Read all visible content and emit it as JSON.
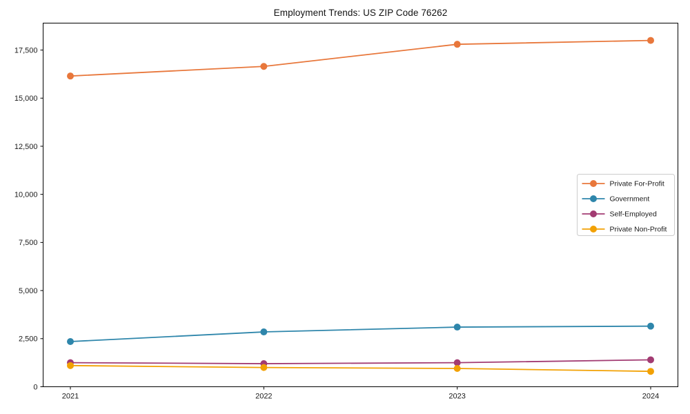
{
  "chart_data": {
    "type": "line",
    "title": "Employment Trends: US ZIP Code 76262",
    "categories": [
      "2021",
      "2022",
      "2023",
      "2024"
    ],
    "series": [
      {
        "name": "Private For-Profit",
        "color": "#E8773B",
        "values": [
          16150,
          16650,
          17800,
          18000
        ]
      },
      {
        "name": "Government",
        "color": "#2E86AB",
        "values": [
          2350,
          2850,
          3100,
          3150
        ]
      },
      {
        "name": "Self-Employed",
        "color": "#A23B72",
        "values": [
          1250,
          1200,
          1250,
          1400
        ]
      },
      {
        "name": "Private Non-Profit",
        "color": "#F2A104",
        "values": [
          1100,
          1000,
          950,
          800
        ]
      }
    ],
    "xlabel": "",
    "ylabel": "",
    "ylim": [
      0,
      18900
    ],
    "yticks": [
      0,
      2500,
      5000,
      7500,
      10000,
      12500,
      15000,
      17500
    ],
    "grid": false,
    "marker": "circle",
    "legend_position": "center right",
    "axis_color": "#000000"
  }
}
